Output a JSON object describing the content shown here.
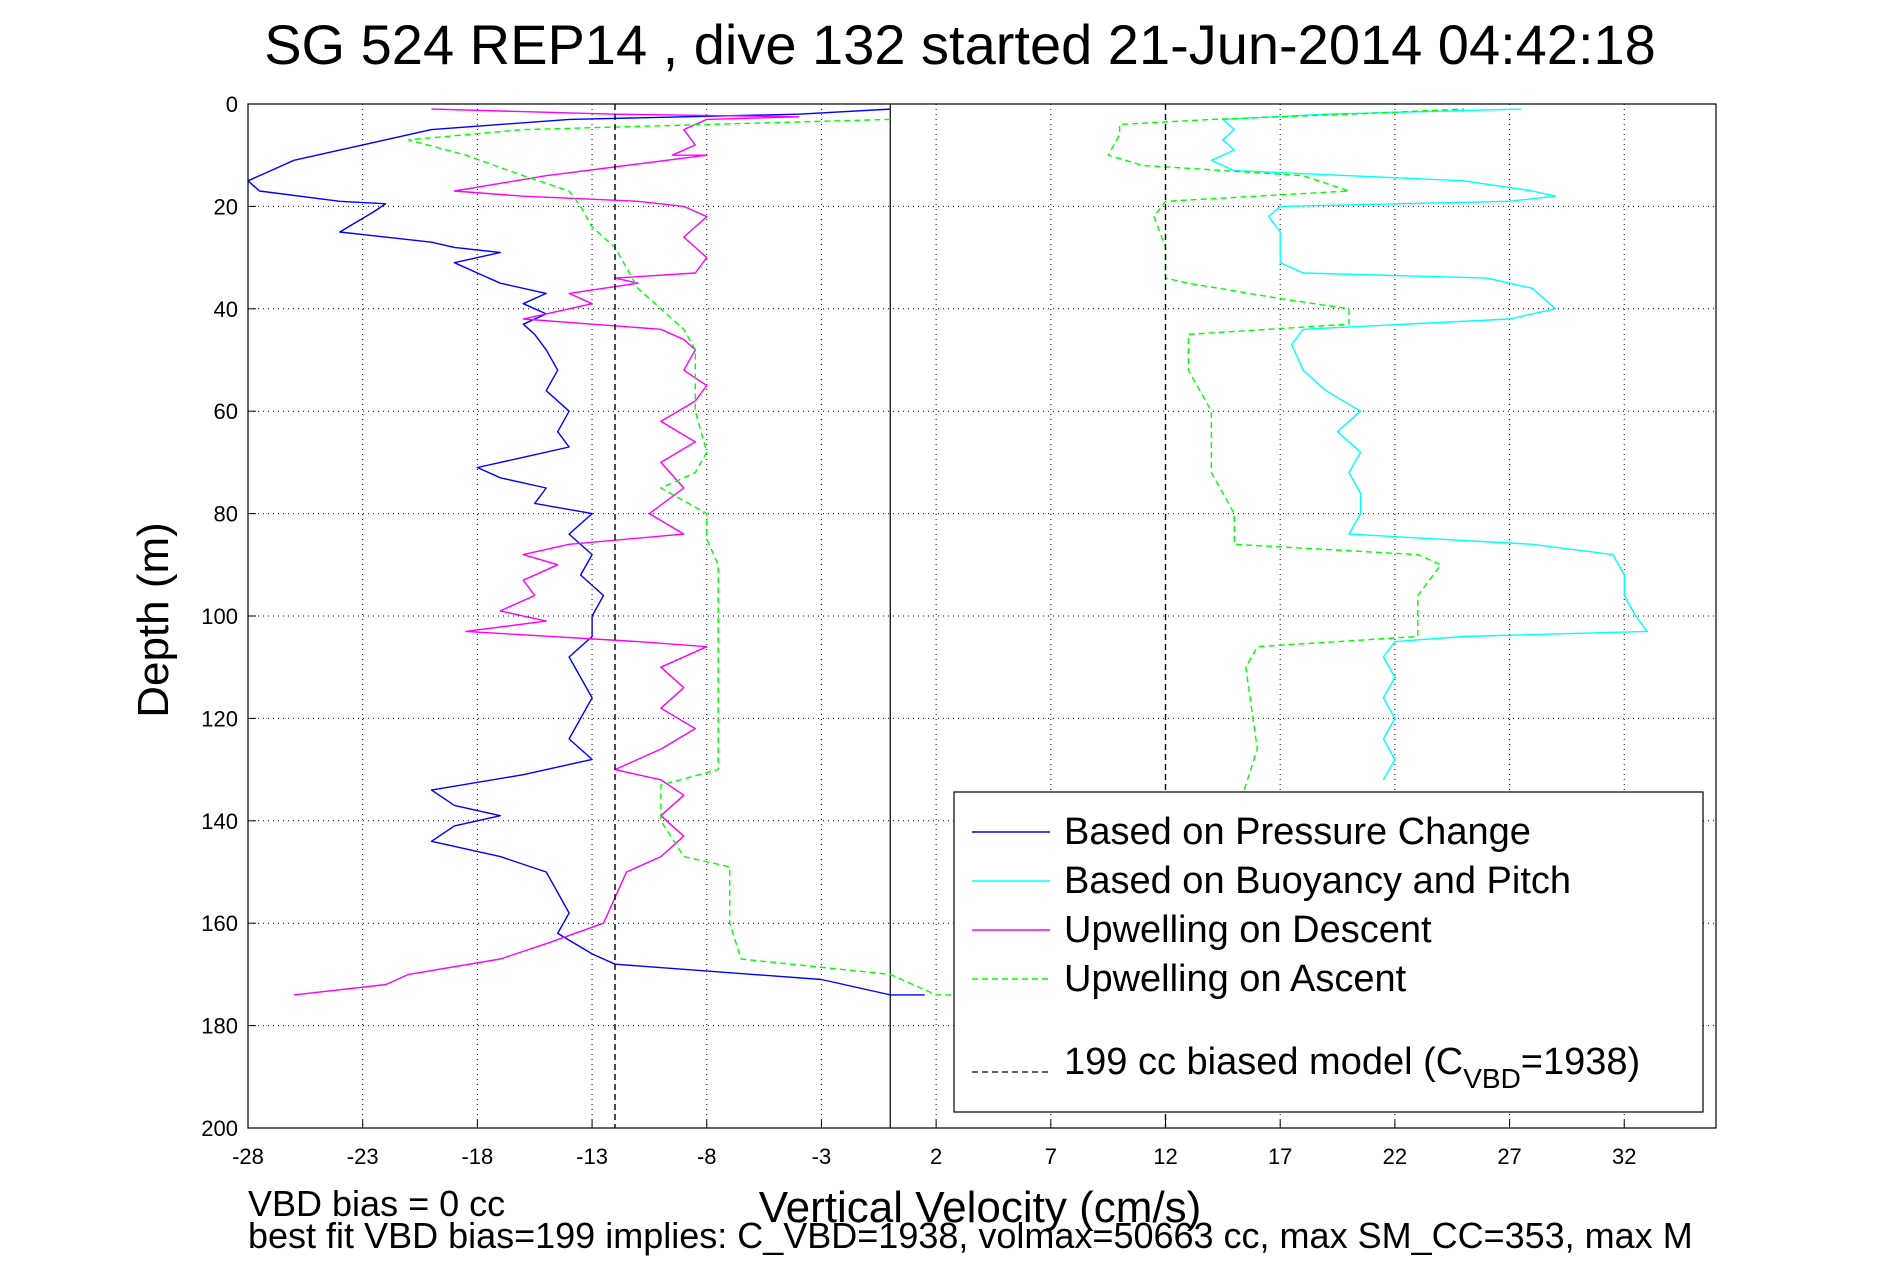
{
  "chart_data": {
    "type": "line",
    "title": "SG 524   REP14  , dive 132 started 21-Jun-2014 04:42:18",
    "xlabel": "Vertical Velocity (cm/s)",
    "ylabel": "Depth (m)",
    "xlim": [
      -28,
      36
    ],
    "ylim": [
      0,
      200
    ],
    "y_reversed": true,
    "grid": true,
    "grid_style": "dotted",
    "xticks": [
      -28,
      -23,
      -18,
      -13,
      -8,
      -3,
      2,
      7,
      12,
      17,
      22,
      27,
      32
    ],
    "yticks": [
      0,
      20,
      40,
      60,
      80,
      100,
      120,
      140,
      160,
      180,
      200
    ],
    "zero_line_x": 0,
    "legend_position": "bottom-right",
    "series": [
      {
        "name": "Based on Pressure Change",
        "color": "#0000ff",
        "dash": "solid",
        "points": [
          [
            0,
            1
          ],
          [
            -4,
            2
          ],
          [
            -14,
            3
          ],
          [
            -20,
            5
          ],
          [
            -22,
            7
          ],
          [
            -24,
            9
          ],
          [
            -26,
            11
          ],
          [
            -27,
            13
          ],
          [
            -28,
            15
          ],
          [
            -27.5,
            17
          ],
          [
            -24,
            19
          ],
          [
            -22,
            19.5
          ],
          [
            -22.5,
            21
          ],
          [
            -24,
            25
          ],
          [
            -20,
            27
          ],
          [
            -19,
            28
          ],
          [
            -17,
            29
          ],
          [
            -19,
            31
          ],
          [
            -18,
            33
          ],
          [
            -17,
            35
          ],
          [
            -15,
            37
          ],
          [
            -16,
            39
          ],
          [
            -15,
            41
          ],
          [
            -16,
            43
          ],
          [
            -15.5,
            45
          ],
          [
            -15,
            48
          ],
          [
            -14.5,
            52
          ],
          [
            -15,
            56
          ],
          [
            -14,
            60
          ],
          [
            -14.5,
            64
          ],
          [
            -14,
            67
          ],
          [
            -16,
            69
          ],
          [
            -18,
            71
          ],
          [
            -17,
            73
          ],
          [
            -15,
            75
          ],
          [
            -15.5,
            78
          ],
          [
            -13,
            80
          ],
          [
            -14,
            84
          ],
          [
            -13,
            88
          ],
          [
            -13.5,
            92
          ],
          [
            -12.5,
            96
          ],
          [
            -13,
            100
          ],
          [
            -13,
            104
          ],
          [
            -14,
            108
          ],
          [
            -13.5,
            112
          ],
          [
            -13,
            116
          ],
          [
            -13.5,
            120
          ],
          [
            -14,
            124
          ],
          [
            -13,
            128
          ],
          [
            -16,
            131
          ],
          [
            -20,
            134
          ],
          [
            -19,
            137
          ],
          [
            -17,
            139
          ],
          [
            -19,
            141
          ],
          [
            -20,
            144
          ],
          [
            -17,
            147
          ],
          [
            -15,
            150
          ],
          [
            -14.5,
            154
          ],
          [
            -14,
            158
          ],
          [
            -14.5,
            162
          ],
          [
            -13,
            166
          ],
          [
            -12,
            168
          ],
          [
            -6,
            170
          ],
          [
            -3,
            171
          ],
          [
            0,
            174
          ],
          [
            1.5,
            174
          ]
        ]
      },
      {
        "name": "Based on Buoyancy and Pitch",
        "color": "#00ffff",
        "dash": "solid",
        "points": [
          [
            27.5,
            1
          ],
          [
            19,
            2
          ],
          [
            14.5,
            3
          ],
          [
            15,
            5
          ],
          [
            14.5,
            7
          ],
          [
            15,
            9
          ],
          [
            14,
            11
          ],
          [
            15,
            13
          ],
          [
            20,
            14
          ],
          [
            25,
            15
          ],
          [
            28,
            17
          ],
          [
            29,
            18
          ],
          [
            27,
            19
          ],
          [
            17,
            20
          ],
          [
            16.5,
            22
          ],
          [
            17,
            25
          ],
          [
            17,
            28
          ],
          [
            17,
            31
          ],
          [
            18,
            33
          ],
          [
            26,
            34
          ],
          [
            28,
            36
          ],
          [
            29,
            40
          ],
          [
            27,
            42
          ],
          [
            18,
            44
          ],
          [
            17.5,
            47
          ],
          [
            18,
            52
          ],
          [
            19,
            56
          ],
          [
            20.5,
            60
          ],
          [
            19.5,
            64
          ],
          [
            20.5,
            68
          ],
          [
            20,
            72
          ],
          [
            20.5,
            76
          ],
          [
            20.5,
            80
          ],
          [
            20,
            84
          ],
          [
            28,
            86
          ],
          [
            31.5,
            88
          ],
          [
            32,
            92
          ],
          [
            32,
            96
          ],
          [
            32.5,
            100
          ],
          [
            33,
            103
          ],
          [
            25,
            104
          ],
          [
            22,
            105
          ],
          [
            21.5,
            108
          ],
          [
            22,
            112
          ],
          [
            21.5,
            116
          ],
          [
            22,
            120
          ],
          [
            21.5,
            124
          ],
          [
            22,
            128
          ],
          [
            21.5,
            132
          ]
        ]
      },
      {
        "name": "Upwelling on Descent",
        "color": "#ff00ff",
        "dash": "solid",
        "points": [
          [
            -20,
            1
          ],
          [
            -12,
            2
          ],
          [
            -4,
            2.5
          ],
          [
            -8,
            3
          ],
          [
            -9,
            5
          ],
          [
            -8.5,
            8
          ],
          [
            -9.5,
            10
          ],
          [
            -8,
            10
          ],
          [
            -15,
            14
          ],
          [
            -19,
            17
          ],
          [
            -16,
            18
          ],
          [
            -11,
            19
          ],
          [
            -9,
            20
          ],
          [
            -8,
            22
          ],
          [
            -9,
            26
          ],
          [
            -8,
            30
          ],
          [
            -8.5,
            33
          ],
          [
            -12,
            34
          ],
          [
            -11,
            35
          ],
          [
            -14,
            37
          ],
          [
            -13,
            39
          ],
          [
            -15,
            41
          ],
          [
            -16,
            42
          ],
          [
            -13,
            43
          ],
          [
            -10,
            44
          ],
          [
            -9,
            46
          ],
          [
            -8.5,
            48
          ],
          [
            -9,
            52
          ],
          [
            -8,
            55
          ],
          [
            -8.5,
            58
          ],
          [
            -10,
            62
          ],
          [
            -8.5,
            66
          ],
          [
            -10,
            70
          ],
          [
            -9,
            75
          ],
          [
            -10.5,
            80
          ],
          [
            -9,
            84
          ],
          [
            -14,
            86
          ],
          [
            -16,
            88
          ],
          [
            -14.5,
            90
          ],
          [
            -16,
            93
          ],
          [
            -15.5,
            96
          ],
          [
            -17,
            99
          ],
          [
            -15,
            101
          ],
          [
            -18.5,
            103
          ],
          [
            -11,
            105
          ],
          [
            -8,
            106
          ],
          [
            -10,
            110
          ],
          [
            -9,
            114
          ],
          [
            -10,
            118
          ],
          [
            -8.5,
            122
          ],
          [
            -10,
            126
          ],
          [
            -12,
            130
          ],
          [
            -10,
            132
          ],
          [
            -9,
            135
          ],
          [
            -10,
            139
          ],
          [
            -9,
            143
          ],
          [
            -10,
            147
          ],
          [
            -11.5,
            150
          ],
          [
            -12,
            155
          ],
          [
            -12.5,
            160
          ],
          [
            -15,
            164
          ],
          [
            -17,
            167
          ],
          [
            -21,
            170
          ],
          [
            -22,
            172
          ],
          [
            -26,
            174
          ]
        ]
      },
      {
        "name": "Upwelling on Ascent",
        "color": "#00ff00",
        "dash": "dashed",
        "points": [
          [
            0,
            3
          ],
          [
            -8,
            4
          ],
          [
            -16,
            5
          ],
          [
            -21,
            7
          ],
          [
            -18.5,
            10
          ],
          [
            -16,
            14
          ],
          [
            -14,
            17
          ],
          [
            -13.5,
            20
          ],
          [
            -13,
            24
          ],
          [
            -12,
            28
          ],
          [
            -11.5,
            32
          ],
          [
            -11,
            36
          ],
          [
            -10.5,
            38
          ],
          [
            -10,
            40
          ],
          [
            -9,
            44
          ],
          [
            -8.5,
            48
          ],
          [
            -8.5,
            52
          ],
          [
            -8.5,
            60
          ],
          [
            -8,
            68
          ],
          [
            -8.5,
            72
          ],
          [
            -10,
            75
          ],
          [
            -8,
            80
          ],
          [
            -8,
            85
          ],
          [
            -7.5,
            90
          ],
          [
            -7.5,
            96
          ],
          [
            -7.5,
            100
          ],
          [
            -7.5,
            110
          ],
          [
            -7.5,
            120
          ],
          [
            -7.5,
            130
          ],
          [
            -10,
            133
          ],
          [
            -10,
            140
          ],
          [
            -9,
            147
          ],
          [
            -7,
            149
          ],
          [
            -7,
            155
          ],
          [
            -7,
            160
          ],
          [
            -6.5,
            167
          ],
          [
            0,
            170
          ],
          [
            2,
            174
          ],
          [
            8,
            174
          ],
          [
            13,
            180
          ],
          [
            14,
            160
          ],
          [
            15,
            140
          ],
          [
            16,
            126
          ],
          [
            15.5,
            110
          ],
          [
            16,
            106
          ],
          [
            23,
            104
          ],
          [
            23,
            96
          ],
          [
            24,
            90
          ],
          [
            23,
            88
          ],
          [
            15,
            86
          ],
          [
            15,
            80
          ],
          [
            14,
            72
          ],
          [
            14,
            60
          ],
          [
            13,
            52
          ],
          [
            13,
            45
          ],
          [
            20,
            43
          ],
          [
            20,
            40
          ],
          [
            17,
            38
          ],
          [
            13,
            35
          ],
          [
            12,
            34
          ],
          [
            12,
            28
          ],
          [
            11.5,
            22
          ],
          [
            12,
            19
          ],
          [
            20,
            17
          ],
          [
            18,
            14
          ],
          [
            11,
            12
          ],
          [
            9.5,
            10
          ],
          [
            10,
            6
          ],
          [
            10,
            4
          ],
          [
            14,
            3
          ],
          [
            20,
            2
          ],
          [
            25,
            1
          ]
        ]
      },
      {
        "name": "199 cc biased model (C_VBD=1938)",
        "color": "#000000",
        "dash": "dashed",
        "points": [
          [
            -12,
            0
          ],
          [
            -12,
            200
          ]
        ],
        "mirror_points": [
          [
            12,
            0
          ],
          [
            12,
            200
          ]
        ]
      }
    ],
    "annotations": [
      "VBD bias = 0 cc",
      "best fit VBD bias=199 implies: C_VBD=1938, volmax=50663 cc, max SM_CC=353, max M"
    ]
  },
  "legend": {
    "items": [
      {
        "label": "Based on Pressure Change",
        "color": "#0000ff",
        "dash": "solid"
      },
      {
        "label": "Based on Buoyancy and Pitch",
        "color": "#00ffff",
        "dash": "solid"
      },
      {
        "label": "Upwelling on Descent",
        "color": "#ff00ff",
        "dash": "solid"
      },
      {
        "label": "Upwelling on Ascent",
        "color": "#00ff00",
        "dash": "dashed"
      }
    ],
    "last_item": {
      "label_prefix": "199 cc biased model (C",
      "label_sub": "VBD",
      "label_suffix": "=1938)",
      "color": "#000000",
      "dash": "dashed"
    }
  }
}
